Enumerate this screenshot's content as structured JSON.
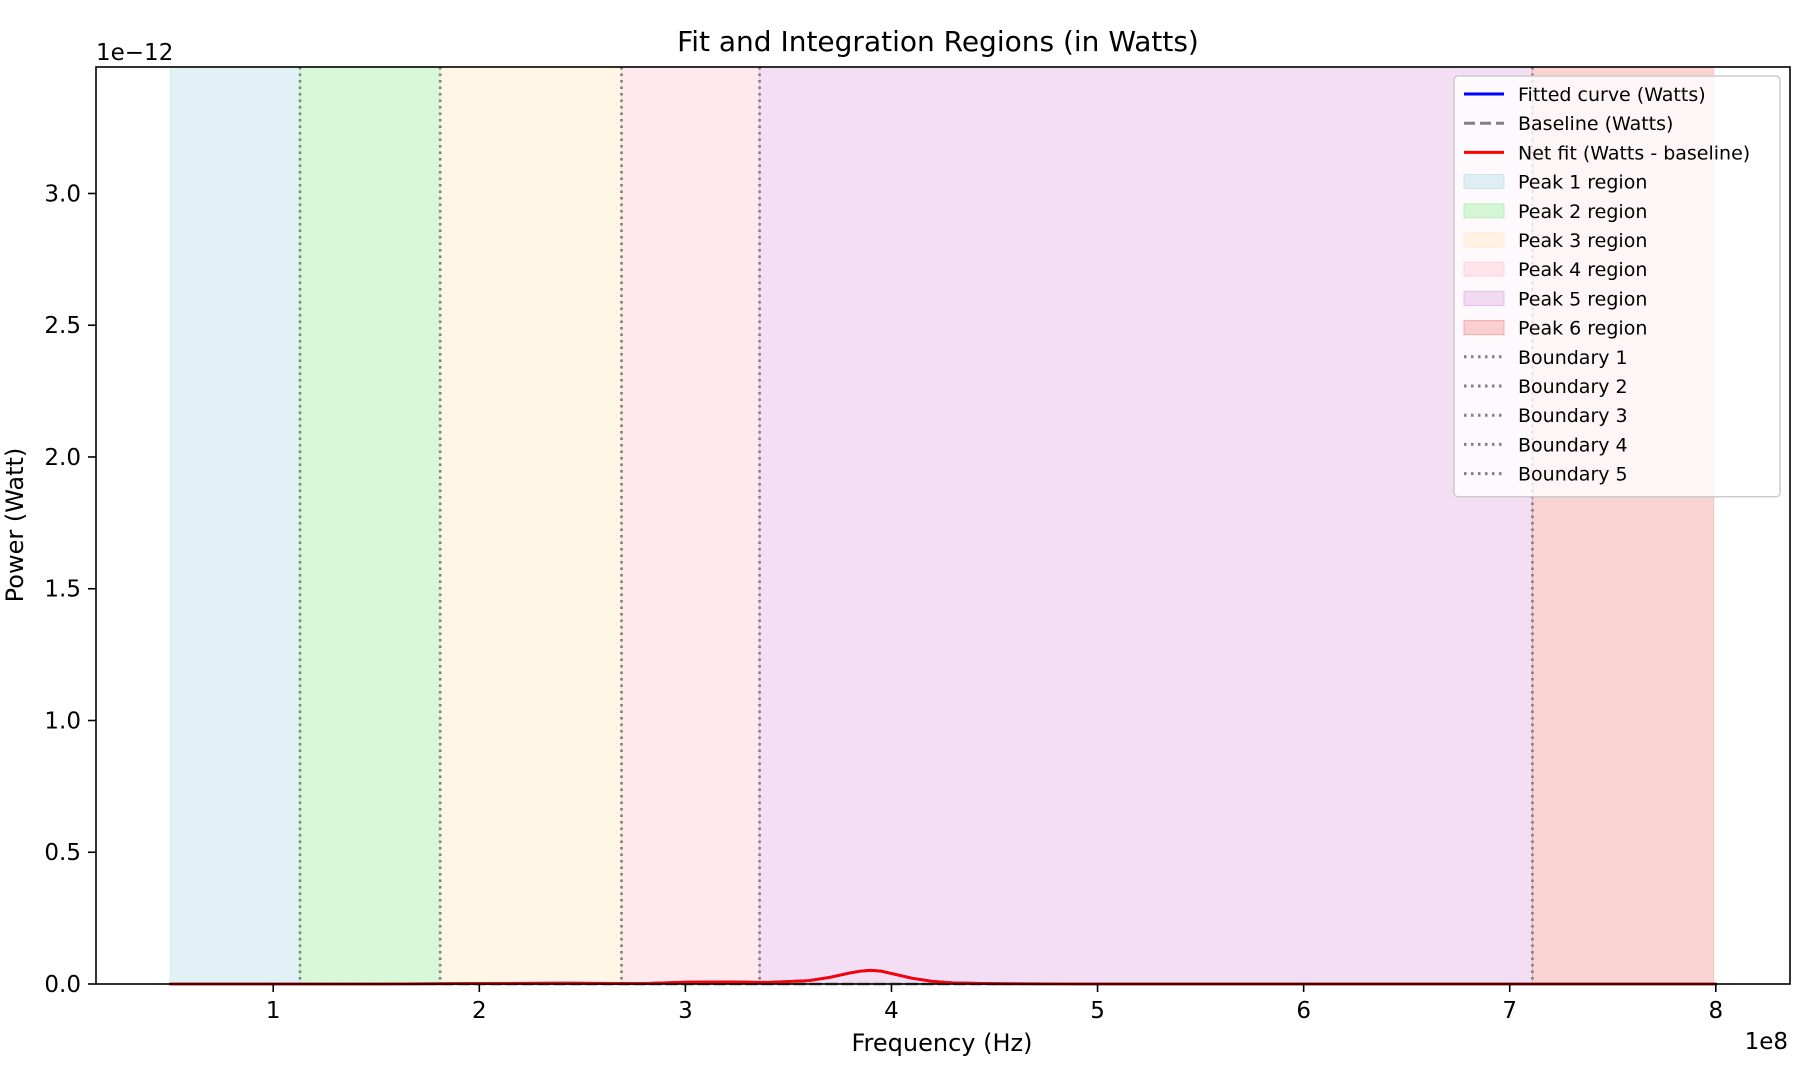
{
  "chart_data": {
    "type": "line",
    "title": "Fit and Integration Regions (in Watts)",
    "xlabel": "Frequency (Hz)",
    "ylabel": "Power (Watt)",
    "x_offset_text": "1e8",
    "y_offset_text": "1e−12",
    "xlim": [
      0.14,
      8.36
    ],
    "ylim": [
      0,
      3.48
    ],
    "xticks": [
      1,
      2,
      3,
      4,
      5,
      6,
      7,
      8
    ],
    "xtick_labels": [
      "1",
      "2",
      "3",
      "4",
      "5",
      "6",
      "7",
      "8"
    ],
    "yticks": [
      0.0,
      0.5,
      1.0,
      1.5,
      2.0,
      2.5,
      3.0
    ],
    "ytick_labels": [
      "0.0",
      "0.5",
      "1.0",
      "1.5",
      "2.0",
      "2.5",
      "3.0"
    ],
    "grid": false,
    "legend_position": "top-right",
    "regions": [
      {
        "name": "Peak 1 region",
        "x0": 0.5,
        "x1": 1.13,
        "color": "#add8e6"
      },
      {
        "name": "Peak 2 region",
        "x0": 1.13,
        "x1": 1.81,
        "color": "#90ee90"
      },
      {
        "name": "Peak 3 region",
        "x0": 1.81,
        "x1": 2.69,
        "color": "#ffe4b5"
      },
      {
        "name": "Peak 4 region",
        "x0": 2.69,
        "x1": 3.36,
        "color": "#ffc0cb"
      },
      {
        "name": "Peak 5 region",
        "x0": 3.36,
        "x1": 7.11,
        "color": "#dda0dd"
      },
      {
        "name": "Peak 6 region",
        "x0": 7.11,
        "x1": 7.99,
        "color": "#f08080"
      }
    ],
    "boundaries": [
      {
        "name": "Boundary 1",
        "x": 1.13
      },
      {
        "name": "Boundary 2",
        "x": 1.81
      },
      {
        "name": "Boundary 3",
        "x": 2.69
      },
      {
        "name": "Boundary 4",
        "x": 3.36
      },
      {
        "name": "Boundary 5",
        "x": 7.11
      }
    ],
    "series": [
      {
        "name": "Fitted curve (Watts)",
        "color": "#0000ff",
        "style": "solid",
        "x": [
          0.5,
          1.0,
          1.5,
          2.0,
          2.4,
          2.8,
          3.0,
          3.2,
          3.4,
          3.6,
          3.7,
          3.8,
          3.85,
          3.9,
          3.95,
          4.0,
          4.1,
          4.2,
          4.3,
          4.5,
          5.0,
          6.0,
          7.0,
          8.0
        ],
        "y": [
          0,
          0,
          0,
          0.002,
          0.003,
          0.002,
          0.007,
          0.008,
          0.006,
          0.013,
          0.025,
          0.042,
          0.049,
          0.052,
          0.049,
          0.04,
          0.022,
          0.01,
          0.004,
          0.001,
          0,
          0,
          0,
          0
        ]
      },
      {
        "name": "Baseline (Watts)",
        "color": "#808080",
        "style": "dashed",
        "x": [
          0.5,
          8.0
        ],
        "y": [
          0,
          0
        ]
      },
      {
        "name": "Net fit (Watts - baseline)",
        "color": "#ff0000",
        "style": "solid",
        "x": [
          0.5,
          1.0,
          1.5,
          2.0,
          2.4,
          2.8,
          3.0,
          3.2,
          3.4,
          3.6,
          3.7,
          3.8,
          3.85,
          3.9,
          3.95,
          4.0,
          4.1,
          4.2,
          4.3,
          4.5,
          5.0,
          6.0,
          7.0,
          8.0
        ],
        "y": [
          0,
          0,
          0,
          0.002,
          0.003,
          0.002,
          0.007,
          0.008,
          0.006,
          0.013,
          0.025,
          0.042,
          0.049,
          0.052,
          0.049,
          0.04,
          0.022,
          0.01,
          0.004,
          0.001,
          0,
          0,
          0,
          0
        ]
      }
    ]
  }
}
